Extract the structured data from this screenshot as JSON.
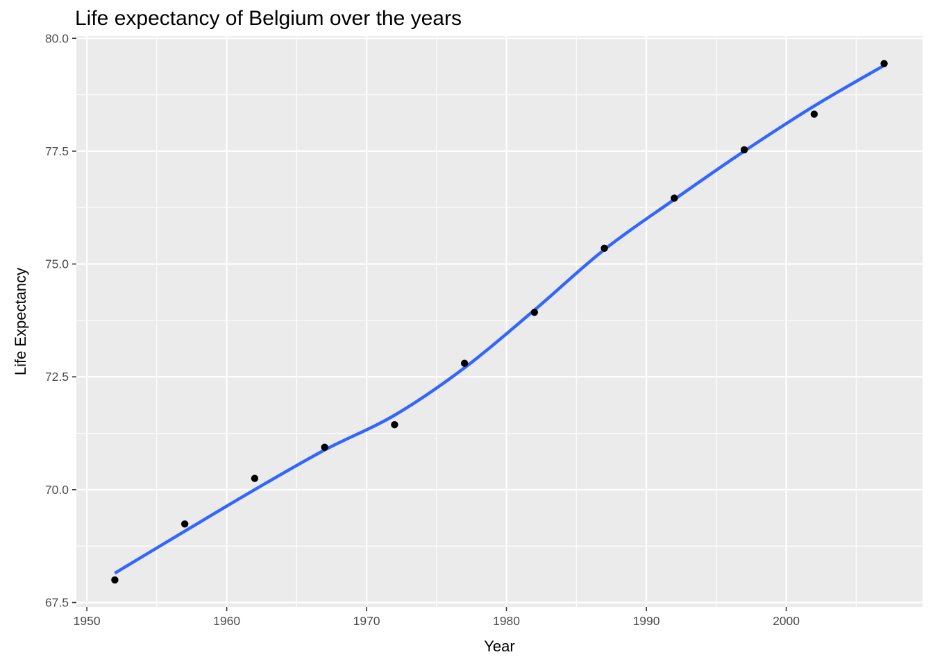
{
  "chart_data": {
    "type": "scatter",
    "title": "Life expectancy of Belgium over the years",
    "xlabel": "Year",
    "ylabel": "Life Expectancy",
    "xlim": [
      1949.25,
      2009.75
    ],
    "ylim": [
      67.4,
      80.05
    ],
    "x_ticks": [
      1950,
      1960,
      1970,
      1980,
      1990,
      2000
    ],
    "x_tick_labels": [
      "1950",
      "1960",
      "1970",
      "1980",
      "1990",
      "2000"
    ],
    "y_ticks": [
      67.5,
      70.0,
      72.5,
      75.0,
      77.5,
      80.0
    ],
    "y_tick_labels": [
      "67.5",
      "70.0",
      "72.5",
      "75.0",
      "77.5",
      "80.0"
    ],
    "grid": true,
    "series": [
      {
        "type": "points",
        "color": "#000000",
        "x": [
          1952,
          1957,
          1962,
          1967,
          1972,
          1977,
          1982,
          1987,
          1992,
          1997,
          2002,
          2007
        ],
        "y": [
          68.0,
          69.24,
          70.25,
          70.94,
          71.44,
          72.8,
          73.93,
          75.35,
          76.46,
          77.53,
          78.32,
          79.44
        ]
      },
      {
        "type": "smooth",
        "color": "#3366FF",
        "x": [
          1952,
          1957,
          1962,
          1967,
          1972,
          1977,
          1982,
          1987,
          1992,
          1997,
          2002,
          2007
        ],
        "y": [
          68.15,
          69.08,
          70.0,
          70.88,
          71.65,
          72.7,
          73.98,
          75.32,
          76.43,
          77.5,
          78.5,
          79.4
        ]
      }
    ]
  }
}
